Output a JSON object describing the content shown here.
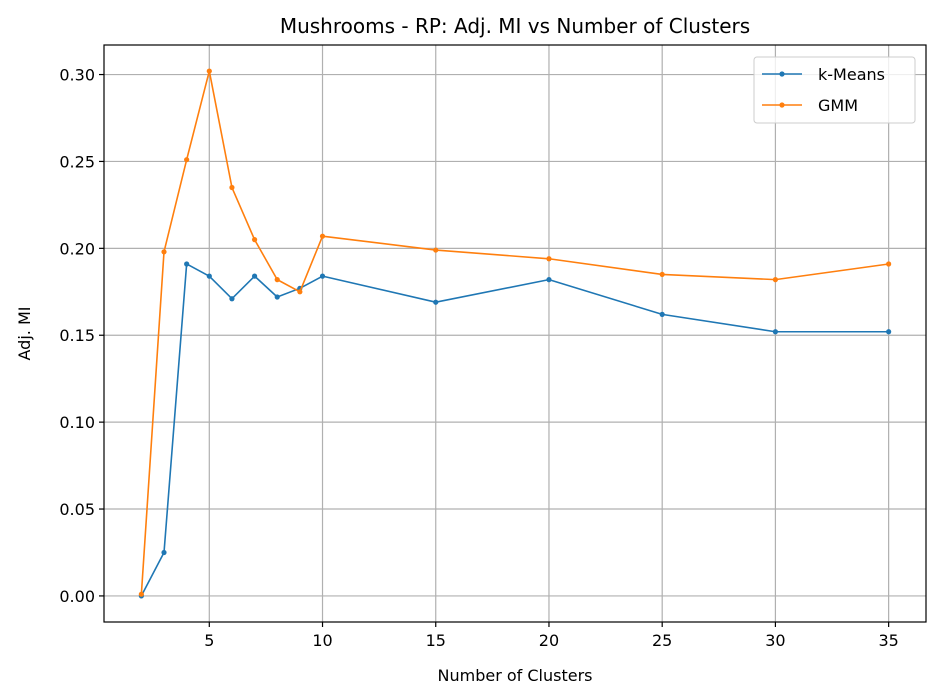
{
  "chart_data": {
    "type": "line",
    "title": "Mushrooms - RP: Adj. MI vs Number of Clusters",
    "xlabel": "Number of Clusters",
    "ylabel": "Adj. MI",
    "xlim": [
      0.35,
      36.65
    ],
    "ylim": [
      -0.015,
      0.317
    ],
    "xticks": [
      5,
      10,
      15,
      20,
      25,
      30,
      35
    ],
    "xtick_labels": [
      "5",
      "10",
      "15",
      "20",
      "25",
      "30",
      "35"
    ],
    "yticks": [
      0.0,
      0.05,
      0.1,
      0.15,
      0.2,
      0.25,
      0.3
    ],
    "ytick_labels": [
      "0.00",
      "0.05",
      "0.10",
      "0.15",
      "0.20",
      "0.25",
      "0.30"
    ],
    "grid": true,
    "legend_position": "top-right",
    "x": [
      2,
      3,
      4,
      5,
      6,
      7,
      8,
      9,
      10,
      15,
      20,
      25,
      30,
      35
    ],
    "series": [
      {
        "name": "k-Means",
        "color": "#1f77b4",
        "values": [
          0.0,
          0.025,
          0.191,
          0.184,
          0.171,
          0.184,
          0.172,
          0.177,
          0.184,
          0.169,
          0.182,
          0.162,
          0.152,
          0.152
        ]
      },
      {
        "name": "GMM",
        "color": "#ff7f0e",
        "values": [
          0.001,
          0.198,
          0.251,
          0.302,
          0.235,
          0.205,
          0.182,
          0.175,
          0.207,
          0.199,
          0.194,
          0.185,
          0.182,
          0.191
        ]
      }
    ]
  }
}
